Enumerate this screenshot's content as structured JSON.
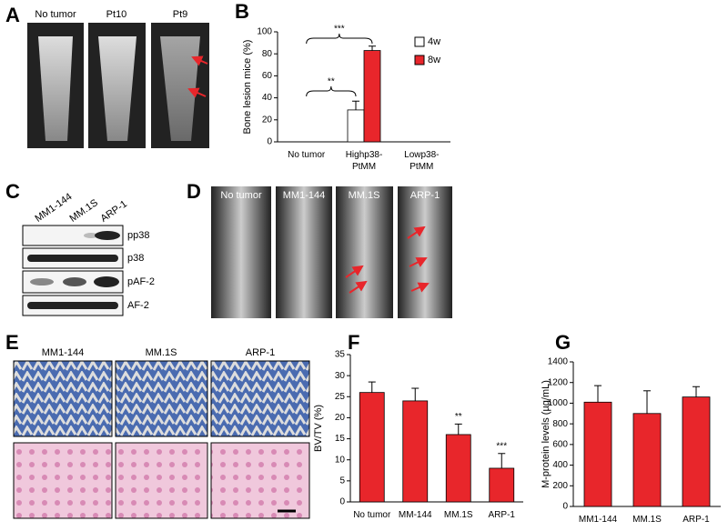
{
  "panel_labels": [
    "A",
    "B",
    "C",
    "D",
    "E",
    "F",
    "G"
  ],
  "panel_a": {
    "images": [
      "No tumor",
      "Pt10",
      "Pt9"
    ]
  },
  "panel_c": {
    "lanes": [
      "MM1-144",
      "MM.1S",
      "ARP-1"
    ],
    "rows": [
      "pp38",
      "p38",
      "pAF-2",
      "AF-2"
    ]
  },
  "panel_d": {
    "images": [
      "No tumor",
      "MM1-144",
      "MM.1S",
      "ARP-1"
    ]
  },
  "panel_e": {
    "images": [
      "MM1-144",
      "MM.1S",
      "ARP-1"
    ]
  },
  "chart_data": [
    {
      "type": "bar",
      "y_label": "Bone lesion mice (%)",
      "categories": [
        "No tumor",
        "Highp38-\nPtMM",
        "Lowp38-\nPtMM"
      ],
      "series": [
        {
          "name": "4w",
          "color": "#ffffff",
          "values": [
            0,
            29,
            0
          ],
          "errors": [
            0,
            8,
            0
          ]
        },
        {
          "name": "8w",
          "color": "#e8262b",
          "values": [
            0,
            83,
            0
          ],
          "errors": [
            0,
            4,
            0
          ]
        }
      ],
      "ylim": [
        0,
        100
      ],
      "yticks": [
        0,
        20,
        40,
        60,
        80,
        100
      ],
      "annotations": [
        "***",
        "**"
      ]
    },
    {
      "type": "bar",
      "y_label": "BV/TV (%)",
      "categories": [
        "No tumor",
        "MM-144",
        "MM.1S",
        "ARP-1"
      ],
      "series": [
        {
          "color": "#e8262b",
          "values": [
            26,
            24,
            16,
            8
          ],
          "errors": [
            2.5,
            3,
            2.5,
            3.5
          ]
        }
      ],
      "ylim": [
        0,
        35
      ],
      "yticks": [
        0,
        5,
        10,
        15,
        20,
        25,
        30,
        35
      ],
      "annotations": [
        "**",
        "***"
      ]
    },
    {
      "type": "bar",
      "y_label": "M-protein levels (µg/mL)",
      "categories": [
        "MM1-144",
        "MM.1S",
        "ARP-1"
      ],
      "series": [
        {
          "color": "#e8262b",
          "values": [
            1010,
            900,
            1060
          ],
          "errors": [
            160,
            220,
            100
          ]
        }
      ],
      "ylim": [
        0,
        1400
      ],
      "yticks": [
        0,
        200,
        400,
        600,
        800,
        1000,
        1200,
        1400
      ]
    }
  ]
}
